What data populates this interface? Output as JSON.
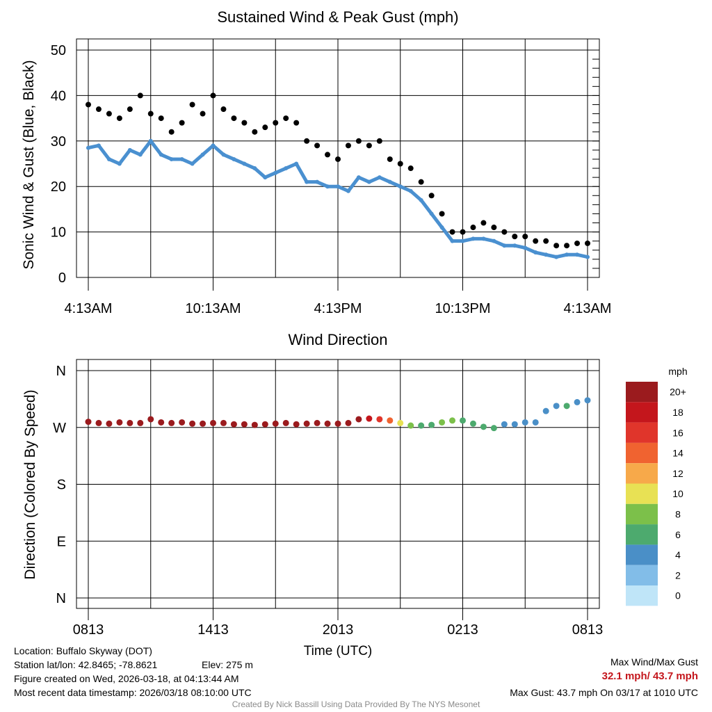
{
  "chart_data": [
    {
      "type": "scatter",
      "title": "Sustained Wind & Peak Gust (mph)",
      "ylabel": "Sonic Wind & Gust (Blue, Black)",
      "xlabel": "",
      "ylim": [
        0,
        50
      ],
      "yticks": [
        "0",
        "10",
        "20",
        "30",
        "40",
        "50"
      ],
      "x_tick_labels": [
        "4:13AM",
        "10:13AM",
        "4:13PM",
        "10:13PM",
        "4:13AM"
      ],
      "x_hours_range": [
        0,
        24
      ],
      "series": [
        {
          "name": "Sustained Wind",
          "color": "#4a90d0",
          "x": [
            0,
            0.5,
            1,
            1.5,
            2,
            2.5,
            3,
            3.5,
            4,
            4.5,
            5,
            5.5,
            6,
            6.5,
            7,
            7.5,
            8,
            8.5,
            9,
            9.5,
            10,
            10.5,
            11,
            11.5,
            12,
            12.5,
            13,
            13.5,
            14,
            14.5,
            15,
            15.5,
            16,
            16.5,
            17,
            17.5,
            18,
            18.5,
            19,
            19.5,
            20,
            20.5,
            21,
            21.5,
            22,
            22.5,
            23,
            23.5,
            24
          ],
          "values": [
            28.5,
            29,
            26,
            25,
            28,
            27,
            30,
            27,
            26,
            26,
            25,
            27,
            29,
            27,
            26,
            25,
            24,
            22,
            23,
            24,
            25,
            21,
            21,
            20,
            20,
            19,
            22,
            21,
            22,
            21,
            20,
            19,
            17,
            14,
            11,
            8,
            8,
            8.5,
            8.5,
            8,
            7,
            7,
            6.5,
            5.5,
            5,
            4.5,
            5,
            5,
            4.5
          ]
        },
        {
          "name": "Peak Gust",
          "color": "#000000",
          "x": [
            0,
            0.5,
            1,
            1.5,
            2,
            2.5,
            3,
            3.5,
            4,
            4.5,
            5,
            5.5,
            6,
            6.5,
            7,
            7.5,
            8,
            8.5,
            9,
            9.5,
            10,
            10.5,
            11,
            11.5,
            12,
            12.5,
            13,
            13.5,
            14,
            14.5,
            15,
            15.5,
            16,
            16.5,
            17,
            17.5,
            18,
            18.5,
            19,
            19.5,
            20,
            20.5,
            21,
            21.5,
            22,
            22.5,
            23,
            23.5,
            24
          ],
          "values": [
            38,
            37,
            36,
            35,
            37,
            40,
            36,
            35,
            32,
            34,
            38,
            36,
            40,
            37,
            35,
            34,
            32,
            33,
            34,
            35,
            34,
            30,
            29,
            27,
            26,
            29,
            30,
            29,
            30,
            26,
            25,
            24,
            21,
            18,
            14,
            10,
            10,
            11,
            12,
            11,
            10,
            9,
            9,
            8,
            8,
            7,
            7,
            7.5,
            7.5
          ]
        }
      ]
    },
    {
      "type": "scatter",
      "title": "Wind Direction",
      "ylabel": "Direction (Colored By Speed)",
      "xlabel": "Time (UTC)",
      "y_ticks": [
        "N",
        "W",
        "S",
        "E",
        "N"
      ],
      "y_range_degrees": [
        360,
        0
      ],
      "x_tick_labels": [
        "0813",
        "1413",
        "2013",
        "0213",
        "0813"
      ],
      "x_hours_range": [
        0,
        24
      ],
      "series": [
        {
          "name": "Direction",
          "x": [
            0,
            0.5,
            1,
            1.5,
            2,
            2.5,
            3,
            3.5,
            4,
            4.5,
            5,
            5.5,
            6,
            6.5,
            7,
            7.5,
            8,
            8.5,
            9,
            9.5,
            10,
            10.5,
            11,
            11.5,
            12,
            12.5,
            13,
            13.5,
            14,
            14.5,
            15,
            15.5,
            16,
            16.5,
            17,
            17.5,
            18,
            18.5,
            19,
            19.5,
            20,
            20.5,
            21,
            21.5,
            22,
            22.5,
            23,
            23.5,
            24
          ],
          "values": [
            279,
            277,
            276,
            278,
            277,
            277,
            283,
            278,
            277,
            278,
            276,
            276,
            277,
            277,
            275,
            275,
            274,
            275,
            276,
            277,
            275,
            276,
            277,
            276,
            276,
            277,
            283,
            284,
            283,
            281,
            277,
            273,
            273,
            274,
            278,
            281,
            281,
            276,
            271,
            269,
            275,
            275,
            278,
            278,
            296,
            304,
            304,
            310,
            313
          ],
          "speed": [
            28,
            28,
            28,
            28,
            28,
            28,
            28,
            28,
            28,
            28,
            28,
            28,
            28,
            28,
            28,
            28,
            28,
            28,
            28,
            28,
            28,
            28,
            28,
            28,
            28,
            24,
            20,
            18,
            16,
            14,
            11,
            8,
            6,
            7,
            8,
            8,
            7,
            7,
            6,
            6,
            5,
            5,
            4,
            4,
            4,
            5,
            6,
            5,
            4
          ]
        }
      ]
    }
  ],
  "colorbar": {
    "title": "mph",
    "labels": [
      "20+",
      "18",
      "16",
      "14",
      "12",
      "10",
      "8",
      "6",
      "4",
      "2",
      "0"
    ],
    "colors": [
      "#9b1b1e",
      "#c4161c",
      "#e0352b",
      "#f06330",
      "#f7a94a",
      "#e8e154",
      "#7cc04a",
      "#4daa6e",
      "#4a8fc7",
      "#82bde8",
      "#bfe5f8"
    ]
  },
  "footer": {
    "location": "Location: Buffalo Skyway (DOT)",
    "latlon": "Station lat/lon: 42.8465; -78.8621",
    "elev": "Elev: 275 m",
    "created": "Figure created on Wed, 2026-03-18, at 04:13:44 AM",
    "recent": "Most recent data timestamp: 2026/03/18 08:10:00 UTC",
    "max_header": "Max Wind/Max Gust",
    "max_values": "32.1 mph/ 43.7 mph",
    "max_gust": "Max Gust: 43.7 mph On 03/17 at 1010 UTC",
    "credit": "Created By Nick Bassill Using Data Provided By The NYS Mesonet"
  }
}
